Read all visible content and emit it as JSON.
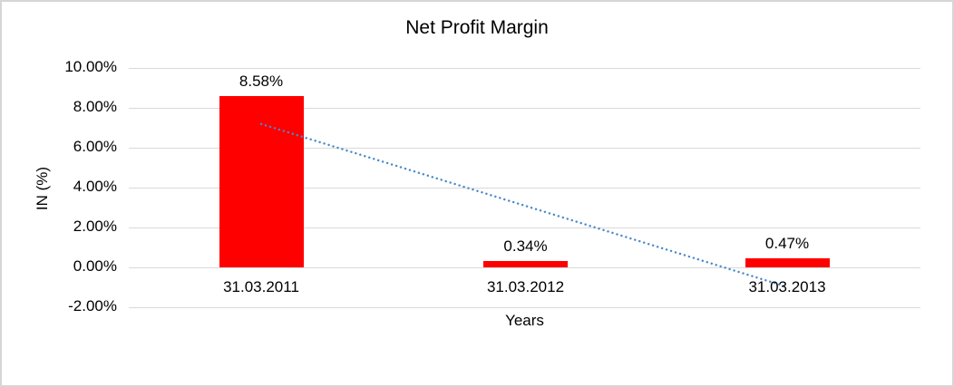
{
  "window": {
    "background": "#FFFFFF",
    "border_color": "#D6D6D6"
  },
  "chart_data": {
    "type": "bar",
    "title": "Net Profit Margin",
    "categories": [
      "31.03.2011",
      "31.03.2012",
      "31.03.2013"
    ],
    "values": [
      8.58,
      0.34,
      0.47
    ],
    "data_labels": [
      "8.58%",
      "0.34%",
      "0.47%"
    ],
    "xlabel": "Years",
    "ylabel": "IN (%)",
    "ylim": [
      -2,
      10
    ],
    "yticks": [
      {
        "label": "10.00%",
        "value": 10
      },
      {
        "label": "8.00%",
        "value": 8
      },
      {
        "label": "6.00%",
        "value": 6
      },
      {
        "label": "4.00%",
        "value": 4
      },
      {
        "label": "2.00%",
        "value": 2
      },
      {
        "label": "0.00%",
        "value": 0
      },
      {
        "label": "-2.00%",
        "value": -2
      }
    ],
    "grid": true,
    "legend_position": "none",
    "bar_color": "#FF0000",
    "gridline_color": "#D9D9D9",
    "text_color": "#000000",
    "trendline": {
      "type": "linear",
      "style": "dotted",
      "color": "#4A89C9",
      "endpoints_pct": [
        7.19,
        -0.98
      ]
    }
  }
}
